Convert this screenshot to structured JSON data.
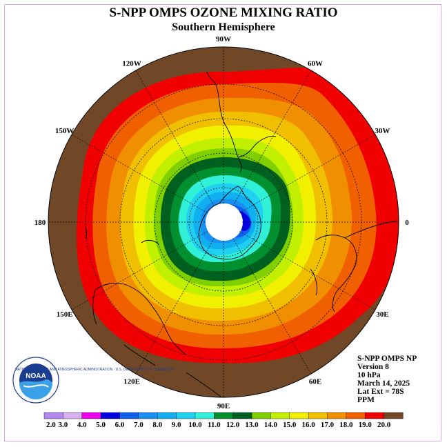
{
  "header": {
    "title": "S-NPP OMPS OZONE MIXING RATIO",
    "subtitle": "Southern Hemisphere"
  },
  "info": {
    "instrument": "S-NPP OMPS NP",
    "version": "Version 8",
    "level": "10 hPa",
    "date": "March 14, 2025",
    "lat_ext": "Lat Ext = 78S",
    "units": "PPM"
  },
  "logo": {
    "name": "NOAA",
    "ring_text": "NATIONAL OCEANIC AND ATMOSPHERIC ADMINISTRATION · U.S. DEPARTMENT OF COMMERCE"
  },
  "longitude_labels": [
    {
      "text": "90W",
      "deg": -90
    },
    {
      "text": "60W",
      "deg": -60
    },
    {
      "text": "30W",
      "deg": -30
    },
    {
      "text": "0",
      "deg": 0
    },
    {
      "text": "30E",
      "deg": 30
    },
    {
      "text": "60E",
      "deg": 60
    },
    {
      "text": "90E",
      "deg": 90
    },
    {
      "text": "120E",
      "deg": 120
    },
    {
      "text": "150E",
      "deg": 150
    },
    {
      "text": "180",
      "deg": 180
    },
    {
      "text": "150W",
      "deg": -150
    },
    {
      "text": "120W",
      "deg": -120
    }
  ],
  "colorbar": {
    "ticks": [
      "2.0",
      "3.0",
      "4.0",
      "5.0",
      "6.0",
      "7.0",
      "8.0",
      "9.0",
      "10.0",
      "11.0",
      "12.0",
      "13.0",
      "14.0",
      "15.0",
      "16.0",
      "17.0",
      "18.0",
      "19.0",
      "20.0"
    ],
    "colors": [
      "#b388f0",
      "#d8b0f0",
      "#ee00ee",
      "#0000e0",
      "#1060f0",
      "#1890f0",
      "#10b0f0",
      "#20d0f0",
      "#30f0d8",
      "#009030",
      "#006020",
      "#80d000",
      "#c0f000",
      "#f0f000",
      "#f0c000",
      "#f09000",
      "#f06000",
      "#f00000",
      "#704828"
    ]
  }
}
